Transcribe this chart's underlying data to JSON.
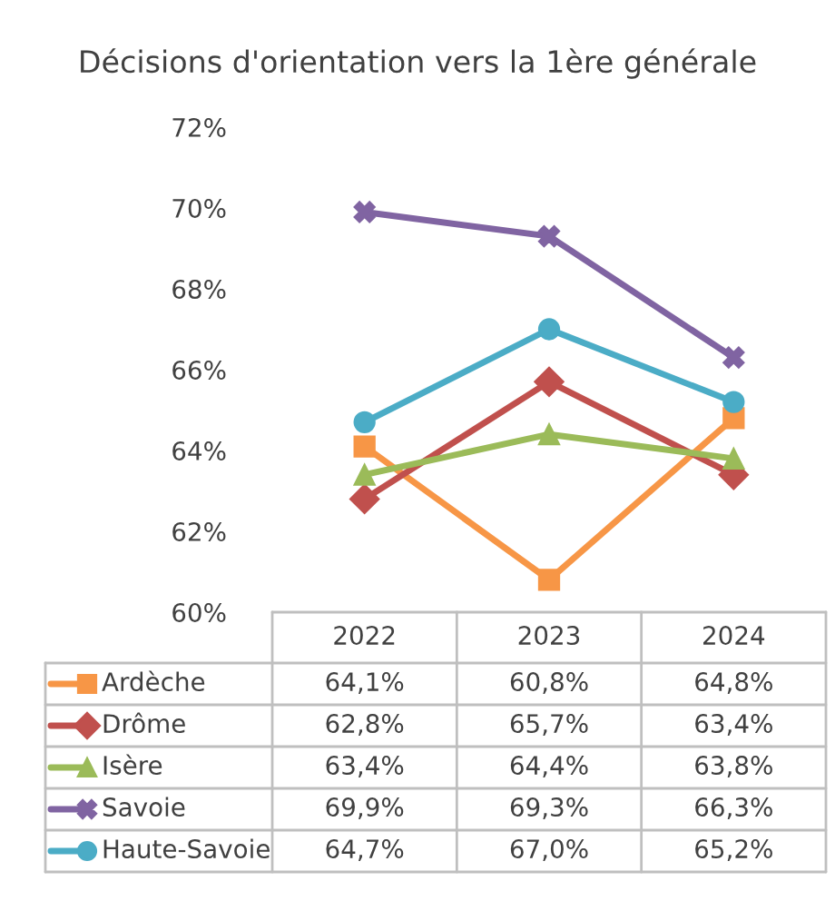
{
  "chart_data": {
    "type": "line",
    "title": "Décisions d'orientation vers la 1ère générale",
    "categories": [
      "2022",
      "2023",
      "2024"
    ],
    "ylim": [
      0.6,
      0.72
    ],
    "yticks": [
      {
        "value": 0.6,
        "label": "60%"
      },
      {
        "value": 0.62,
        "label": "62%"
      },
      {
        "value": 0.64,
        "label": "64%"
      },
      {
        "value": 0.66,
        "label": "66%"
      },
      {
        "value": 0.68,
        "label": "68%"
      },
      {
        "value": 0.7,
        "label": "70%"
      },
      {
        "value": 0.72,
        "label": "72%"
      }
    ],
    "grid": false,
    "legend": "bottom",
    "line_style": "solid",
    "series": [
      {
        "name": "Ardèche",
        "color": "#f79646",
        "marker": "square",
        "values": [
          0.641,
          0.608,
          0.648
        ],
        "value_labels": [
          "64,1%",
          "60,8%",
          "64,8%"
        ]
      },
      {
        "name": "Drôme",
        "color": "#c0504d",
        "marker": "diamond",
        "values": [
          0.628,
          0.657,
          0.634
        ],
        "value_labels": [
          "62,8%",
          "65,7%",
          "63,4%"
        ]
      },
      {
        "name": "Isère",
        "color": "#9bbb59",
        "marker": "triangle",
        "values": [
          0.634,
          0.644,
          0.638
        ],
        "value_labels": [
          "63,4%",
          "64,4%",
          "63,8%"
        ]
      },
      {
        "name": "Savoie",
        "color": "#8064a2",
        "marker": "cross",
        "values": [
          0.699,
          0.693,
          0.663
        ],
        "value_labels": [
          "69,9%",
          "69,3%",
          "66,3%"
        ]
      },
      {
        "name": "Haute-Savoie",
        "color": "#4bacc6",
        "marker": "circle",
        "values": [
          0.647,
          0.67,
          0.652
        ],
        "value_labels": [
          "64,7%",
          "67,0%",
          "65,2%"
        ]
      }
    ]
  }
}
